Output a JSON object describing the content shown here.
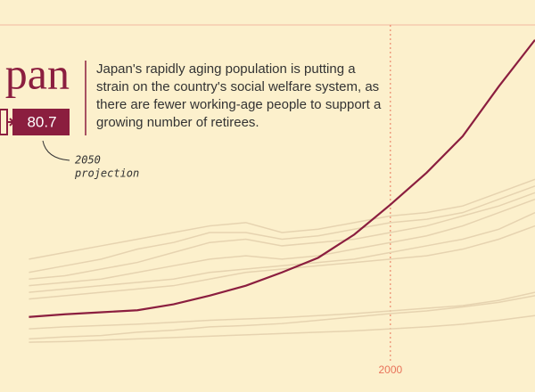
{
  "chart_data": {
    "type": "line",
    "title": "pan",
    "description": [
      "Japan's rapidly aging population is putting a",
      "strain on the country's social welfare system, as",
      "there are fewer working-age people to support a",
      "growing number of retirees."
    ],
    "projection_2050": 80.7,
    "annotation": [
      "2050",
      "projection"
    ],
    "x": [
      1950,
      1955,
      1960,
      1965,
      1970,
      1975,
      1980,
      1985,
      1990,
      1995,
      2000,
      2005,
      2010,
      2015,
      2020
    ],
    "xlim": [
      1946,
      2020
    ],
    "xticks": [
      2000
    ],
    "ylim": [
      -3,
      56
    ],
    "highlight": {
      "color": "#8b1e3f",
      "values": [
        8.3,
        8.7,
        9.0,
        9.3,
        10.2,
        11.5,
        13.0,
        15.0,
        17.2,
        20.7,
        25.2,
        30.0,
        35.5,
        43.0,
        50.0
      ]
    },
    "series_color": "#e6d3b0",
    "series": [
      {
        "values": [
          17,
          18,
          19,
          20,
          21,
          22,
          22.5,
          21,
          21.5,
          22.5,
          23.5,
          24,
          25,
          27,
          29
        ]
      },
      {
        "values": [
          15,
          16,
          17,
          18.5,
          19.5,
          21,
          21,
          20,
          20.5,
          21.5,
          22.5,
          23,
          24,
          26,
          28
        ]
      },
      {
        "values": [
          14,
          14.5,
          15.5,
          16.5,
          18,
          19.5,
          20,
          19,
          19.5,
          20,
          21,
          22,
          23.5,
          25,
          27
        ]
      },
      {
        "values": [
          13,
          13.5,
          14,
          15,
          16,
          17,
          17.5,
          17,
          17.5,
          18.5,
          19.5,
          20.5,
          22,
          24,
          26
        ]
      },
      {
        "values": [
          12,
          12.5,
          13,
          13.5,
          14,
          15,
          15.5,
          16,
          16.5,
          17,
          18,
          19,
          20,
          21.5,
          24
        ]
      },
      {
        "values": [
          11,
          11.5,
          12,
          12.5,
          13,
          14,
          15,
          15.5,
          16,
          16.5,
          17,
          17.5,
          18.5,
          20,
          22
        ]
      },
      {
        "values": [
          5,
          5.3,
          5.5,
          6,
          6.3,
          6.8,
          7,
          7.3,
          7.8,
          8.3,
          8.8,
          9.2,
          9.8,
          10.5,
          11.5
        ]
      },
      {
        "values": [
          6.5,
          6.8,
          7,
          7.2,
          7.5,
          7.8,
          8,
          8.2,
          8.5,
          8.8,
          9.2,
          9.6,
          10,
          10.8,
          12
        ]
      },
      {
        "values": [
          4.5,
          4.6,
          4.8,
          5,
          5.2,
          5.4,
          5.6,
          5.8,
          6,
          6.2,
          6.5,
          6.8,
          7.2,
          7.8,
          8.5
        ]
      }
    ]
  }
}
